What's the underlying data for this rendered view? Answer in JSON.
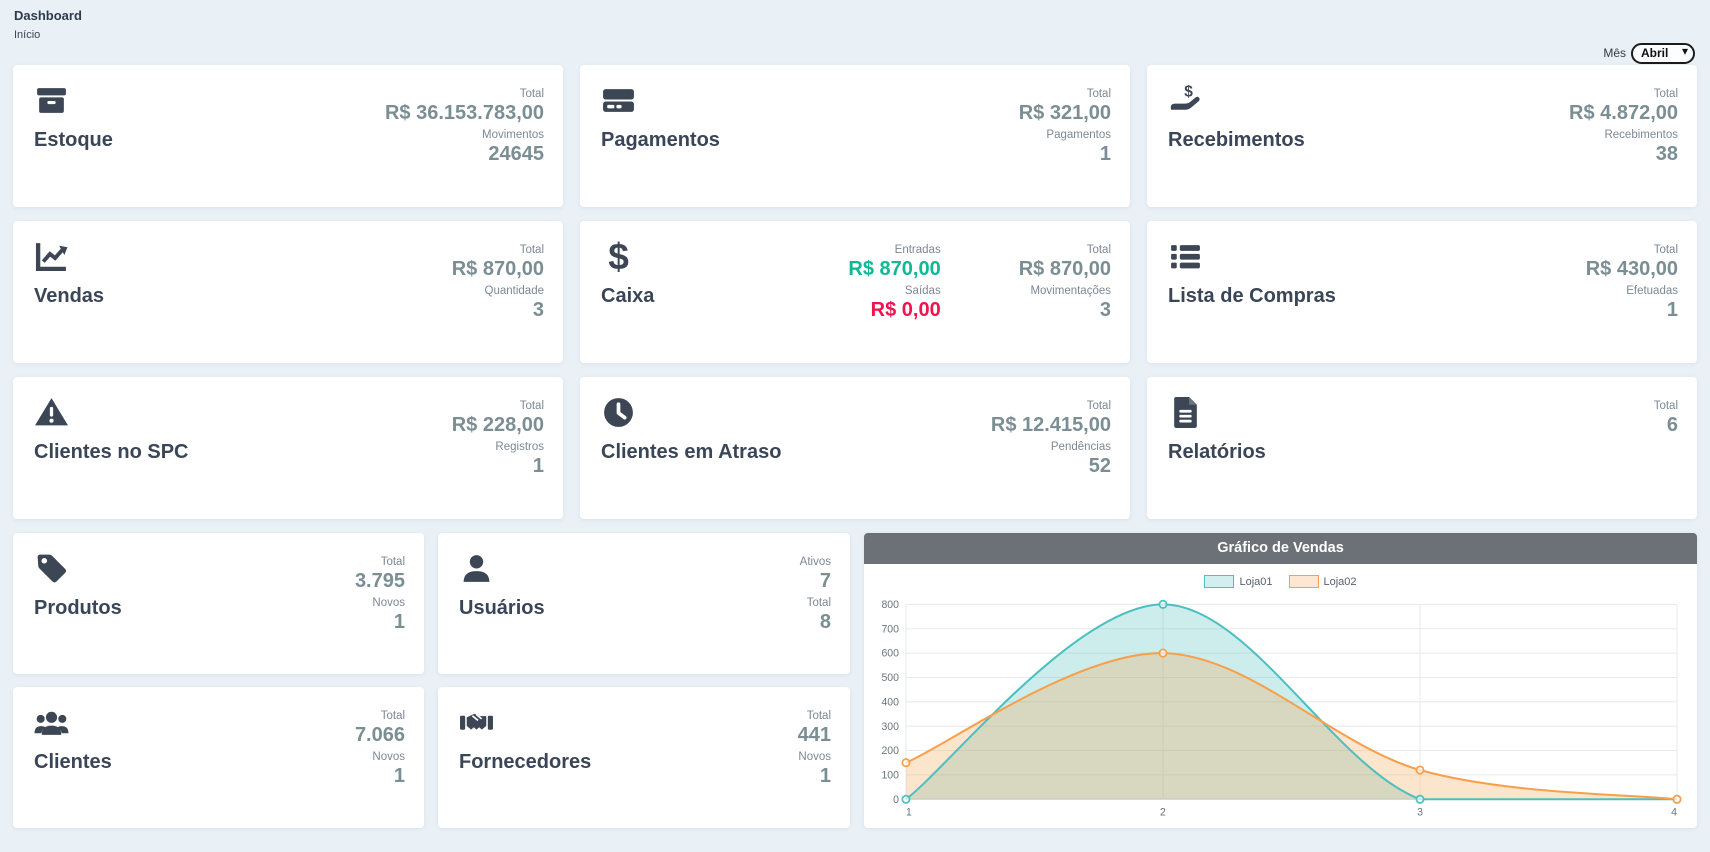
{
  "page": {
    "title": "Dashboard",
    "subtitle": "Início"
  },
  "month_filter": {
    "label": "Mês",
    "selected": "Abril"
  },
  "colors": {
    "background": "#e9f0f6",
    "card_title": "#3a4557",
    "stat_value": "#7a8e94",
    "positive": "#12b796",
    "negative": "#f0134d",
    "chart_header_bg": "#6b7177"
  },
  "cards": {
    "estoque": {
      "title": "Estoque",
      "icon": "archive-icon",
      "stats": [
        {
          "label": "Total",
          "value": "R$ 36.153.783,00"
        },
        {
          "label": "Movimentos",
          "value": "24645"
        }
      ]
    },
    "pagamentos": {
      "title": "Pagamentos",
      "icon": "credit-card-icon",
      "stats": [
        {
          "label": "Total",
          "value": "R$ 321,00"
        },
        {
          "label": "Pagamentos",
          "value": "1"
        }
      ]
    },
    "recebimentos": {
      "title": "Recebimentos",
      "icon": "hand-holding-dollar-icon",
      "stats": [
        {
          "label": "Total",
          "value": "R$ 4.872,00"
        },
        {
          "label": "Recebimentos",
          "value": "38"
        }
      ]
    },
    "vendas": {
      "title": "Vendas",
      "icon": "chart-line-icon",
      "stats": [
        {
          "label": "Total",
          "value": "R$ 870,00"
        },
        {
          "label": "Quantidade",
          "value": "3"
        }
      ]
    },
    "caixa": {
      "title": "Caixa",
      "icon": "dollar-sign-icon",
      "flow_stats": [
        {
          "label": "Entradas",
          "value": "R$ 870,00",
          "color": "green"
        },
        {
          "label": "Saídas",
          "value": "R$ 0,00",
          "color": "red"
        }
      ],
      "stats": [
        {
          "label": "Total",
          "value": "R$ 870,00"
        },
        {
          "label": "Movimentações",
          "value": "3"
        }
      ]
    },
    "lista_de_compras": {
      "title": "Lista de Compras",
      "icon": "list-icon",
      "stats": [
        {
          "label": "Total",
          "value": "R$ 430,00"
        },
        {
          "label": "Efetuadas",
          "value": "1"
        }
      ]
    },
    "clientes_no_spc": {
      "title": "Clientes no SPC",
      "icon": "warning-triangle-icon",
      "stats": [
        {
          "label": "Total",
          "value": "R$ 228,00"
        },
        {
          "label": "Registros",
          "value": "1"
        }
      ]
    },
    "clientes_em_atraso": {
      "title": "Clientes em Atraso",
      "icon": "clock-icon",
      "stats": [
        {
          "label": "Total",
          "value": "R$ 12.415,00"
        },
        {
          "label": "Pendências",
          "value": "52"
        }
      ]
    },
    "relatorios": {
      "title": "Relatórios",
      "icon": "file-report-icon",
      "stats": [
        {
          "label": "Total",
          "value": "6"
        }
      ]
    },
    "produtos": {
      "title": "Produtos",
      "icon": "tag-icon",
      "stats": [
        {
          "label": "Total",
          "value": "3.795"
        },
        {
          "label": "Novos",
          "value": "1"
        }
      ]
    },
    "usuarios": {
      "title": "Usuários",
      "icon": "user-icon",
      "stats": [
        {
          "label": "Ativos",
          "value": "7"
        },
        {
          "label": "Total",
          "value": "8"
        }
      ]
    },
    "clientes": {
      "title": "Clientes",
      "icon": "users-icon",
      "stats": [
        {
          "label": "Total",
          "value": "7.066"
        },
        {
          "label": "Novos",
          "value": "1"
        }
      ]
    },
    "fornecedores": {
      "title": "Fornecedores",
      "icon": "handshake-icon",
      "stats": [
        {
          "label": "Total",
          "value": "441"
        },
        {
          "label": "Novos",
          "value": "1"
        }
      ]
    }
  },
  "chart_data": {
    "type": "area",
    "title": "Gráfico de Vendas",
    "x": [
      1,
      2,
      3,
      4
    ],
    "series": [
      {
        "name": "Loja01",
        "color": "#4CBFC0",
        "values": [
          0,
          800,
          0,
          0
        ]
      },
      {
        "name": "Loja02",
        "color": "#F6A04D",
        "values": [
          150,
          600,
          120,
          0
        ]
      }
    ],
    "ylim": [
      0,
      800
    ],
    "ytick_step": 100,
    "fill_opacity": 0.28,
    "grid": true,
    "legend_position": "top",
    "xlabel": "",
    "ylabel": ""
  }
}
